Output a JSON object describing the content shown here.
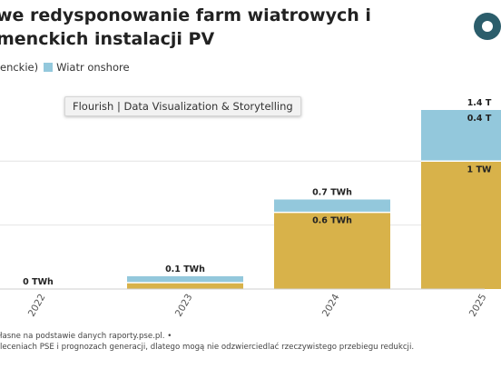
{
  "header": {
    "title": "we redysponowanie farm wiatrowych i menckich instalacji PV"
  },
  "legend": {
    "items": [
      {
        "label": "enckie)",
        "color": "#d8b24a"
      },
      {
        "label": "Wiatr onshore",
        "color": "#93c8dc"
      }
    ]
  },
  "tooltip": {
    "text": "Flourish | Data Visualization & Storytelling"
  },
  "chart_data": {
    "type": "bar",
    "stacked": true,
    "categories": [
      "2022",
      "2023",
      "2024",
      "2025"
    ],
    "series": [
      {
        "name": "enckie)",
        "color": "#d8b24a",
        "values": [
          0,
          0.05,
          0.6,
          1.0
        ]
      },
      {
        "name": "Wiatr onshore",
        "color": "#93c8dc",
        "values": [
          0,
          0.05,
          0.1,
          0.4
        ]
      }
    ],
    "labels": {
      "totals": [
        "0 TWh",
        "0.1 TWh",
        "0.7 TWh",
        "1.4 T"
      ],
      "segments": [
        {
          "category": "2024",
          "series": "enckie)",
          "text": "0.6 TWh"
        },
        {
          "category": "2025",
          "series": "enckie)",
          "text": "1 TW"
        },
        {
          "category": "2025",
          "series": "Wiatr onshore",
          "text": "0.4 T"
        }
      ]
    },
    "ylim": [
      0,
      1.4
    ],
    "grid": true,
    "legend_position": "top-left"
  },
  "source": {
    "line1": "łasne na podstawie danych raporty.pse.pl. •",
    "line2": "leceniach PSE i prognozach generacji, dlatego mogą nie odzwierciedlać rzeczywistego przebiegu redukcji."
  }
}
